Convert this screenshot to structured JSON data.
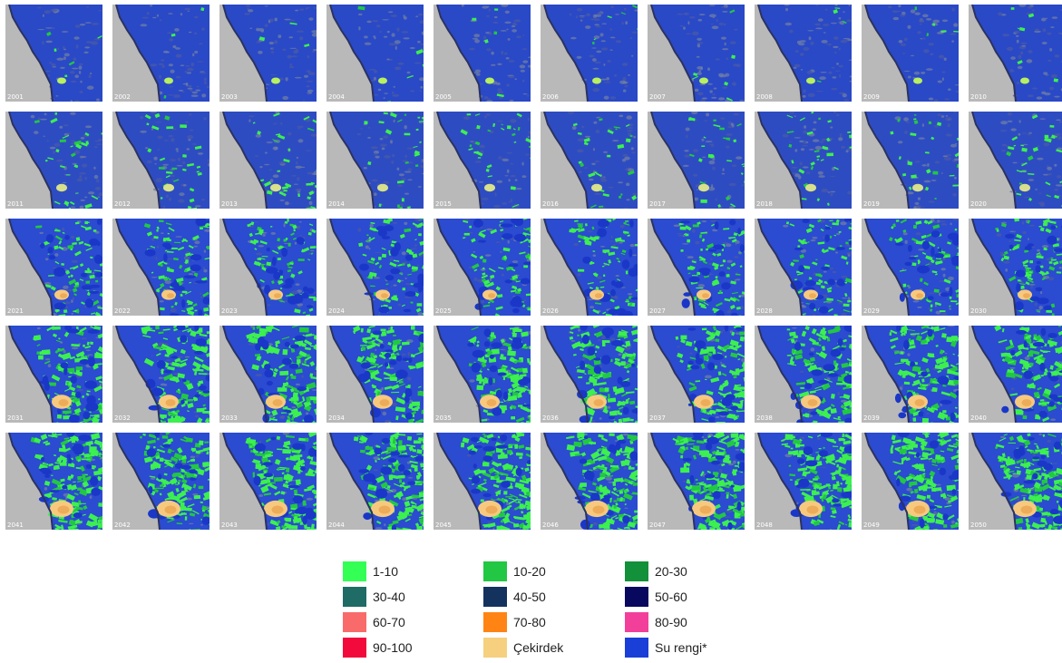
{
  "tiles": [
    {
      "year": "2001",
      "stage": 0
    },
    {
      "year": "2002",
      "stage": 0
    },
    {
      "year": "2003",
      "stage": 0
    },
    {
      "year": "2004",
      "stage": 0
    },
    {
      "year": "2005",
      "stage": 0
    },
    {
      "year": "2006",
      "stage": 0
    },
    {
      "year": "2007",
      "stage": 0
    },
    {
      "year": "2008",
      "stage": 0
    },
    {
      "year": "2009",
      "stage": 0
    },
    {
      "year": "2010",
      "stage": 0
    },
    {
      "year": "2011",
      "stage": 1
    },
    {
      "year": "2012",
      "stage": 1
    },
    {
      "year": "2013",
      "stage": 1
    },
    {
      "year": "2014",
      "stage": 1
    },
    {
      "year": "2015",
      "stage": 1
    },
    {
      "year": "2016",
      "stage": 1
    },
    {
      "year": "2017",
      "stage": 1
    },
    {
      "year": "2018",
      "stage": 1
    },
    {
      "year": "2019",
      "stage": 1
    },
    {
      "year": "2020",
      "stage": 1
    },
    {
      "year": "2021",
      "stage": 2
    },
    {
      "year": "2022",
      "stage": 2
    },
    {
      "year": "2023",
      "stage": 2
    },
    {
      "year": "2024",
      "stage": 2
    },
    {
      "year": "2025",
      "stage": 2
    },
    {
      "year": "2026",
      "stage": 2
    },
    {
      "year": "2027",
      "stage": 2
    },
    {
      "year": "2028",
      "stage": 2
    },
    {
      "year": "2029",
      "stage": 2
    },
    {
      "year": "2030",
      "stage": 2
    },
    {
      "year": "2031",
      "stage": 3
    },
    {
      "year": "2032",
      "stage": 3
    },
    {
      "year": "2033",
      "stage": 3
    },
    {
      "year": "2034",
      "stage": 3
    },
    {
      "year": "2035",
      "stage": 3
    },
    {
      "year": "2036",
      "stage": 3
    },
    {
      "year": "2037",
      "stage": 3
    },
    {
      "year": "2038",
      "stage": 3
    },
    {
      "year": "2039",
      "stage": 3
    },
    {
      "year": "2040",
      "stage": 3
    },
    {
      "year": "2041",
      "stage": 4
    },
    {
      "year": "2042",
      "stage": 4
    },
    {
      "year": "2043",
      "stage": 4
    },
    {
      "year": "2044",
      "stage": 4
    },
    {
      "year": "2045",
      "stage": 4
    },
    {
      "year": "2046",
      "stage": 4
    },
    {
      "year": "2047",
      "stage": 4
    },
    {
      "year": "2048",
      "stage": 4
    },
    {
      "year": "2049",
      "stage": 4
    },
    {
      "year": "2050",
      "stage": 4
    }
  ],
  "colors": {
    "background_land": "#b9b9b9",
    "water": "#1e3fd6",
    "green_light": "#3cf050",
    "core": "#f7c97e",
    "core_dark": "#e8a04a"
  },
  "legend": [
    {
      "label": "1-10",
      "color": "#33ff55"
    },
    {
      "label": "10-20",
      "color": "#22c744"
    },
    {
      "label": "20-30",
      "color": "#12903a"
    },
    {
      "label": "30-40",
      "color": "#1f6b66"
    },
    {
      "label": "40-50",
      "color": "#14325e"
    },
    {
      "label": "50-60",
      "color": "#08085e"
    },
    {
      "label": "60-70",
      "color": "#f96b6b"
    },
    {
      "label": "70-80",
      "color": "#ff8414"
    },
    {
      "label": "80-90",
      "color": "#f2409a"
    },
    {
      "label": "90-100",
      "color": "#f20a3c"
    },
    {
      "label": "Çekirdek",
      "color": "#f6d07e"
    },
    {
      "label": "Su rengi*",
      "color": "#1a3fd8"
    }
  ]
}
